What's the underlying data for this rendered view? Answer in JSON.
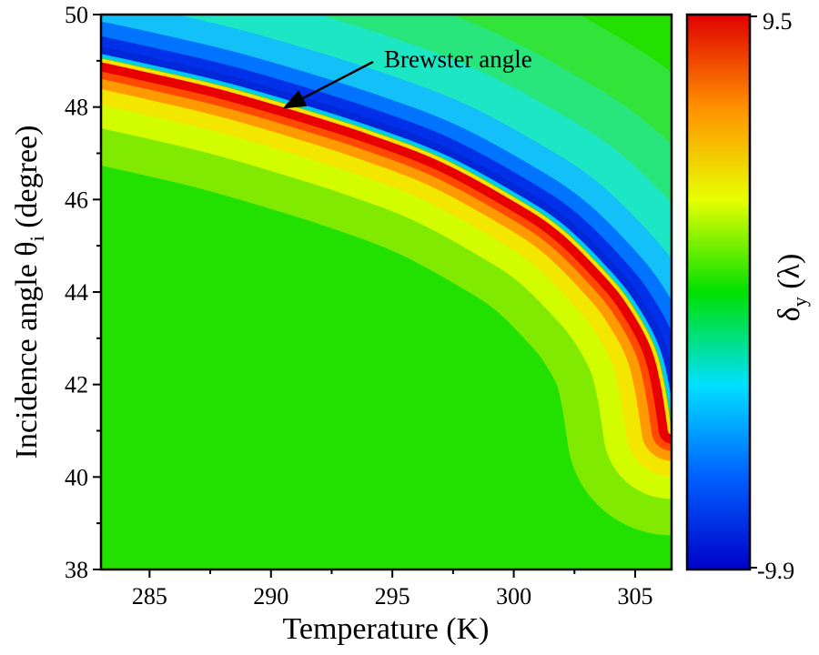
{
  "chart_data": {
    "type": "heatmap",
    "title": "",
    "xlabel": "Temperature (K)",
    "ylabel": "Incidence angle θ",
    "ylabel_sub": "i",
    "ylabel_tail": " (degree)",
    "xlim": [
      283,
      306.5
    ],
    "ylim": [
      38,
      50
    ],
    "x_ticks": [
      285,
      290,
      295,
      300,
      305
    ],
    "y_ticks": [
      38,
      40,
      42,
      44,
      46,
      48,
      50
    ],
    "grid": false,
    "colorbar": {
      "label_main": "δ",
      "label_sub": "y",
      "label_unit": " (λ)",
      "min": -9.9,
      "max": 9.5,
      "min_label": "-9.9",
      "max_label": "9.5",
      "colormap": [
        "#0000c8",
        "#0060ff",
        "#00e0ff",
        "#00e000",
        "#e8ff00",
        "#ff9000",
        "#e00000"
      ]
    },
    "brewster_curve": {
      "x": [
        283,
        285,
        288,
        291,
        294,
        297,
        300,
        302,
        304,
        305,
        305.8,
        306.2,
        306.5
      ],
      "y": [
        49.05,
        48.82,
        48.45,
        48.0,
        47.5,
        46.9,
        46.05,
        45.35,
        44.3,
        43.6,
        42.8,
        42.0,
        41.0
      ]
    },
    "annotations": [
      {
        "text": "Brewster angle",
        "arrow_to": {
          "x": 290.5,
          "y": 48.05
        }
      }
    ]
  }
}
